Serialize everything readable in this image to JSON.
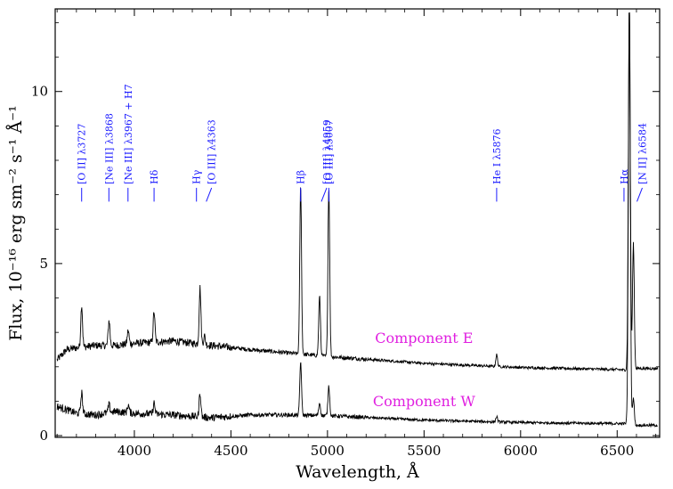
{
  "chart_data": {
    "type": "line",
    "xlabel": "Wavelength, Å",
    "ylabel": "Flux, 10⁻¹⁶ erg sm⁻² s⁻¹ Å⁻¹",
    "xlim": [
      3590,
      6720
    ],
    "ylim": [
      -0.05,
      12.4
    ],
    "x_ticks": [
      4000,
      4500,
      5000,
      5500,
      6000,
      6500
    ],
    "y_ticks": [
      0,
      5,
      10
    ],
    "colors": {
      "spectrum": "#000000",
      "lines": "#1a1aff",
      "components": "#e020e0"
    },
    "series": [
      {
        "name": "Component E",
        "continuum": [
          [
            3600,
            2.2
          ],
          [
            3650,
            2.5
          ],
          [
            3700,
            2.55
          ],
          [
            3800,
            2.62
          ],
          [
            3900,
            2.62
          ],
          [
            4000,
            2.68
          ],
          [
            4200,
            2.75
          ],
          [
            4400,
            2.62
          ],
          [
            4600,
            2.5
          ],
          [
            4800,
            2.4
          ],
          [
            5000,
            2.3
          ],
          [
            5500,
            2.1
          ],
          [
            6000,
            1.98
          ],
          [
            6500,
            1.92
          ],
          [
            6570,
            1.9
          ],
          [
            6600,
            1.95
          ],
          [
            6700,
            1.95
          ]
        ],
        "lines": [
          [
            3727,
            3.8
          ],
          [
            3869,
            3.35
          ],
          [
            3968,
            3.05
          ],
          [
            4102,
            3.6
          ],
          [
            4340,
            4.3
          ],
          [
            4363,
            2.9
          ],
          [
            4861,
            7.3
          ],
          [
            4959,
            4.05
          ],
          [
            5007,
            7.25
          ],
          [
            5876,
            2.35
          ],
          [
            6563,
            12.5
          ],
          [
            6584,
            5.6
          ]
        ]
      },
      {
        "name": "Component W",
        "continuum": [
          [
            3600,
            0.85
          ],
          [
            3700,
            0.65
          ],
          [
            3800,
            0.6
          ],
          [
            3900,
            0.7
          ],
          [
            4000,
            0.65
          ],
          [
            4200,
            0.6
          ],
          [
            4400,
            0.52
          ],
          [
            4600,
            0.6
          ],
          [
            4800,
            0.6
          ],
          [
            5000,
            0.58
          ],
          [
            5500,
            0.45
          ],
          [
            6000,
            0.38
          ],
          [
            6500,
            0.35
          ],
          [
            6560,
            0.35
          ],
          [
            6600,
            0.3
          ],
          [
            6700,
            0.3
          ]
        ],
        "lines": [
          [
            3727,
            1.25
          ],
          [
            3869,
            0.9
          ],
          [
            3968,
            0.9
          ],
          [
            4102,
            0.95
          ],
          [
            4340,
            1.25
          ],
          [
            4861,
            2.15
          ],
          [
            4959,
            0.95
          ],
          [
            5007,
            1.45
          ],
          [
            5876,
            0.55
          ],
          [
            6563,
            12.5
          ],
          [
            6584,
            1.1
          ]
        ]
      }
    ],
    "line_ids": [
      {
        "label": "[O II] λ3727",
        "x": 3727
      },
      {
        "label": "[Ne III] λ3868",
        "x": 3868
      },
      {
        "label": "[Ne III] λ3967 + H7",
        "x": 3967
      },
      {
        "label": "Hδ",
        "x": 4102
      },
      {
        "label": "Hγ",
        "x": 4340
      },
      {
        "label": "[O III] λ4363",
        "x": 4363
      },
      {
        "label": "Hβ",
        "x": 4861
      },
      {
        "label": "[O III] λ4959",
        "x": 4959
      },
      {
        "label": "[O III] λ5007",
        "x": 5007
      },
      {
        "label": "He I λ5876",
        "x": 5876
      },
      {
        "label": "Hα",
        "x": 6563
      },
      {
        "label": "[N II] λ6584",
        "x": 6584
      }
    ],
    "annotations": [
      {
        "text": "Component E",
        "x": 5500,
        "y": 2.7
      },
      {
        "text": "Component W",
        "x": 5500,
        "y": 0.85
      }
    ]
  }
}
